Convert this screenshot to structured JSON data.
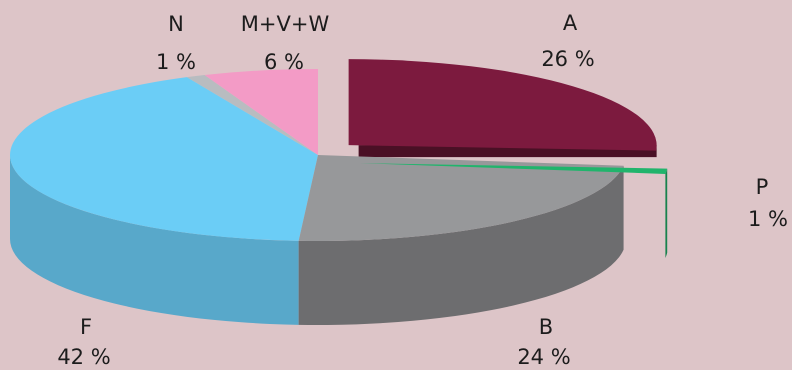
{
  "colors": {
    "background": "#DDC5C8",
    "A": "#7C1A3E",
    "P": "#21B46C",
    "B": "#97989A",
    "F": "#6BCDF6",
    "N": "#B8BCC0",
    "MVW": "#F39BC6"
  },
  "chart_data": {
    "type": "pie",
    "style": "3d-exploded",
    "title": "",
    "slices": [
      {
        "label": "A",
        "value": 26,
        "value_text": "26 %",
        "color": "#7C1A3E",
        "exploded": true
      },
      {
        "label": "P",
        "value": 1,
        "value_text": "1 %",
        "color": "#21B46C",
        "exploded": true
      },
      {
        "label": "B",
        "value": 24,
        "value_text": "24 %",
        "color": "#97989A",
        "exploded": false
      },
      {
        "label": "F",
        "value": 42,
        "value_text": "42 %",
        "color": "#6BCDF6",
        "exploded": false
      },
      {
        "label": "N",
        "value": 1,
        "value_text": "1 %",
        "color": "#B8BCC0",
        "exploded": false
      },
      {
        "label": "M+V+W",
        "value": 6,
        "value_text": "6 %",
        "color": "#F39BC6",
        "exploded": false
      }
    ]
  }
}
